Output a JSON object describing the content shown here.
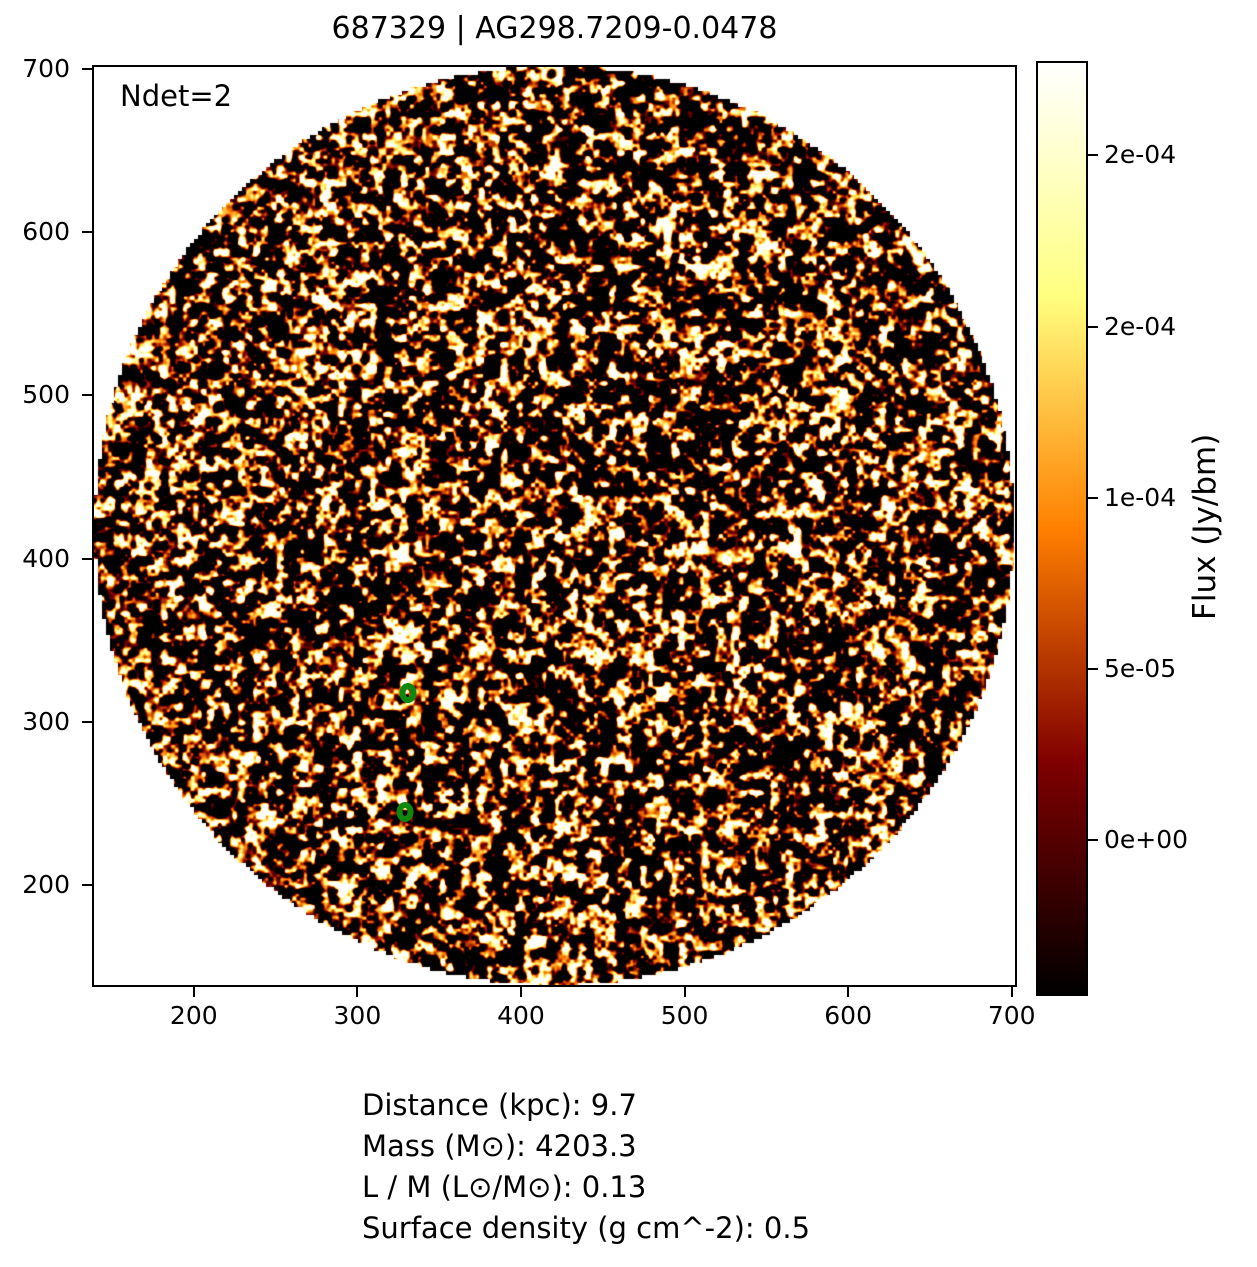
{
  "figure": {
    "title": "687329 | AG298.7209-0.0478",
    "annotation": "Ndet=2",
    "info_lines": [
      "Distance (kpc): 9.7",
      "Mass (M⊙): 4203.3",
      "L / M (L⊙/M⊙): 0.13",
      "Surface density (g cm^-2): 0.5"
    ]
  },
  "chart_data": {
    "type": "heatmap",
    "title": "687329 | AG298.7209-0.0478",
    "annotation": "Ndet=2",
    "xlabel": "",
    "ylabel": "",
    "xlim": [
      139,
      702
    ],
    "ylim": [
      139,
      701
    ],
    "x_ticks": [
      200,
      300,
      400,
      500,
      600,
      700
    ],
    "y_ticks": [
      200,
      300,
      400,
      500,
      600,
      700
    ],
    "grid": false,
    "image": {
      "description": "circular field of beam-smoothed instrument noise, white outside aperture",
      "colormap": "afmhot",
      "colormap_stops": [
        "#000000",
        "#800000",
        "#ff8000",
        "#ffff80",
        "#ffffff"
      ],
      "circle_center": [
        420.5,
        420.0
      ],
      "circle_radius": 281,
      "outside_color": "#ffffff"
    },
    "colorbar": {
      "label": "Flux (Jy/bm)",
      "tick_labels": [
        "2e-04",
        "2e-04",
        "1e-04",
        "5e-05",
        "0e+00"
      ],
      "tick_values": [
        0.0002,
        0.00015,
        0.0001,
        5e-05,
        0.0
      ],
      "range": [
        -4.5e-05,
        0.000227
      ],
      "position": "right"
    },
    "markers": [
      {
        "x": 331,
        "y": 318,
        "shape": "open-circle",
        "color": "#0d870d"
      },
      {
        "x": 329,
        "y": 245,
        "shape": "open-circle",
        "color": "#0d870d"
      }
    ]
  }
}
